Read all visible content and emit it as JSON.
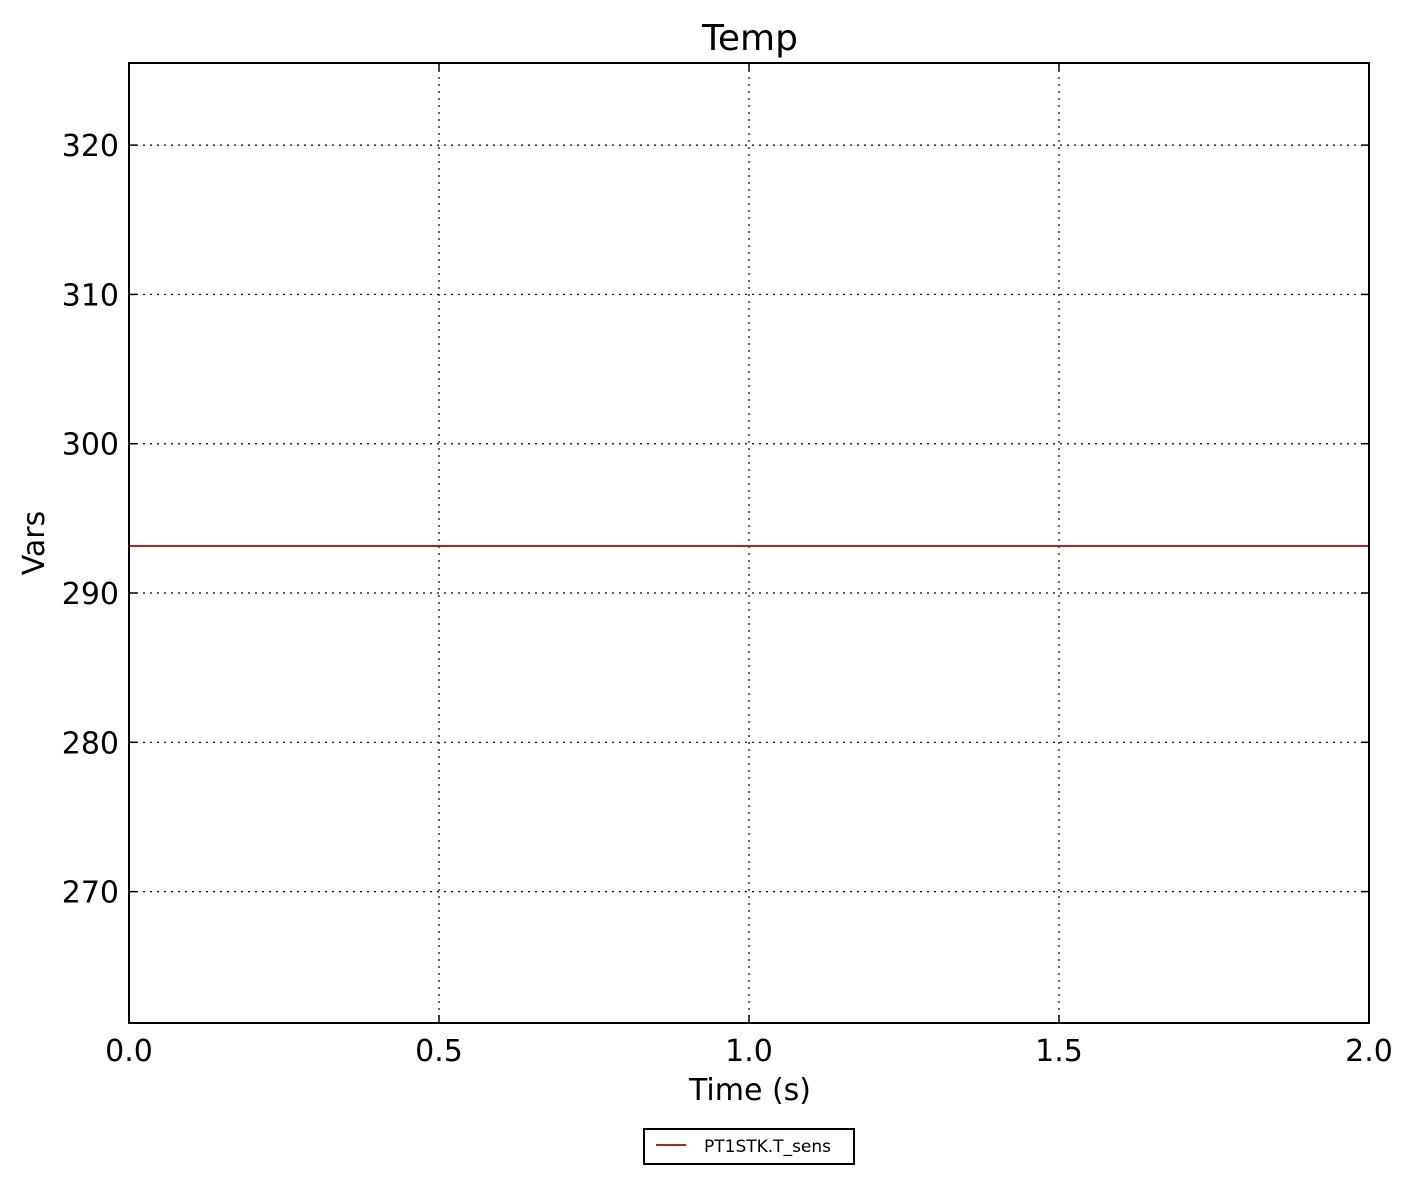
{
  "chart_data": {
    "type": "line",
    "title": "Temp",
    "xlabel": "Time (s)",
    "ylabel": "Vars",
    "xlim": [
      0.0,
      2.0
    ],
    "ylim": [
      261.2,
      325.5
    ],
    "xticks": [
      0.0,
      0.5,
      1.0,
      1.5,
      2.0
    ],
    "xtick_labels": [
      "0.0",
      "0.5",
      "1.0",
      "1.5",
      "2.0"
    ],
    "yticks": [
      270,
      280,
      290,
      300,
      310,
      320
    ],
    "ytick_labels": [
      "270",
      "280",
      "290",
      "300",
      "310",
      "320"
    ],
    "grid": true,
    "legend_position": "below-center",
    "series": [
      {
        "name": "PT1STK.T_sens",
        "color": "#b22222",
        "x": [
          0.0,
          2.0
        ],
        "y": [
          293.15,
          293.15
        ]
      }
    ]
  }
}
